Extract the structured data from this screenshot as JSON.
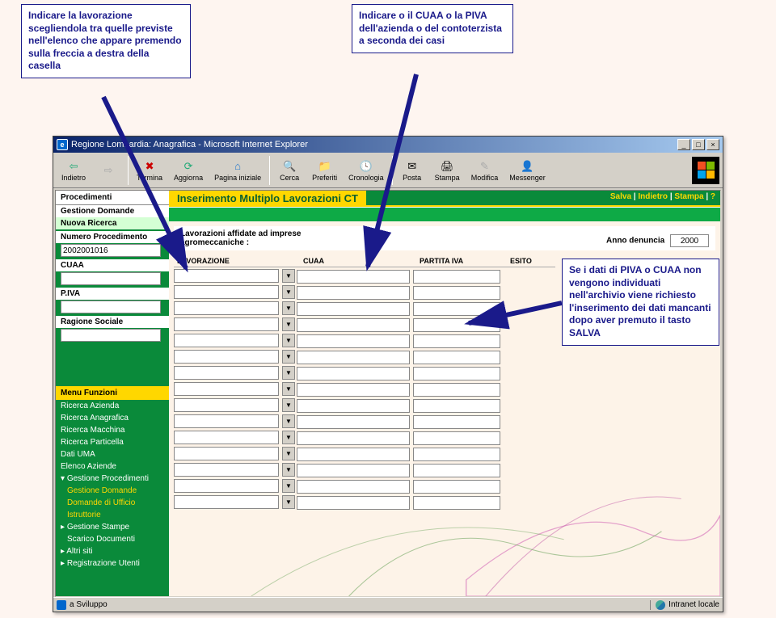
{
  "callouts": {
    "left": "Indicare la lavorazione scegliendola tra quelle previste nell'elenco che appare premendo sulla freccia a destra della casella",
    "mid": "Indicare o il CUAA o la PIVA dell'azienda o del contoterzista a seconda dei casi",
    "right": "Se i dati di PIVA o CUAA non vengono individuati nell'archivio viene richiesto l'inserimento dei dati mancanti dopo aver premuto il tasto SALVA"
  },
  "window": {
    "title": "Regione Lombardia: Anagrafica - Microsoft Internet Explorer"
  },
  "toolbar": {
    "back": "Indietro",
    "forward": "",
    "stop": "Termina",
    "refresh": "Aggiorna",
    "home": "Pagina iniziale",
    "search": "Cerca",
    "fav": "Preferiti",
    "history": "Cronologia",
    "mail": "Posta",
    "print": "Stampa",
    "edit": "Modifica",
    "msg": "Messenger"
  },
  "sidebar": {
    "proc_head": "Procedimenti",
    "gest_dom": "Gestione Domande",
    "nuova": "Nuova Ricerca",
    "num_proc_label": "Numero Procedimento",
    "num_proc_value": "2002001016",
    "cuaa_label": "CUAA",
    "cuaa_value": "",
    "piva_label": "P.IVA",
    "piva_value": "",
    "rag_label": "Ragione Sociale",
    "rag_value": "",
    "menu_head": "Menu Funzioni",
    "items": [
      "Ricerca Azienda",
      "Ricerca Anagrafica",
      "Ricerca Macchina",
      "Ricerca Particella",
      "Dati UMA",
      "Elenco Aziende"
    ],
    "gest_proc": "Gestione Procedimenti",
    "gest_sub": [
      "Gestione Domande",
      "Domande di Ufficio",
      "Istruttorie"
    ],
    "gest_stampe": "Gestione Stampe",
    "scarico": "Scarico Documenti",
    "altri": "Altri siti",
    "reg": "Registrazione Utenti"
  },
  "main": {
    "title": "Inserimento Multiplo Lavorazioni CT",
    "actions": {
      "salva": "Salva",
      "indietro": "Indietro",
      "stampa": "Stampa",
      "help": "?"
    },
    "info_text": "Lavorazioni affidate ad imprese agromeccaniche :",
    "anno_label": "Anno denuncia",
    "anno_value": "2000",
    "cols": {
      "lav": "LAVORAZIONE",
      "cuaa": "CUAA",
      "piva": "PARTITA IVA",
      "esito": "ESITO"
    },
    "row_count": 15
  },
  "status": {
    "left": "a Sviluppo",
    "right": "Intranet locale"
  },
  "colors": {
    "callout_border": "#1a1a8a",
    "green_dark": "#0a8a3a",
    "green_light": "#0eaa46",
    "gold": "#ffd700"
  }
}
